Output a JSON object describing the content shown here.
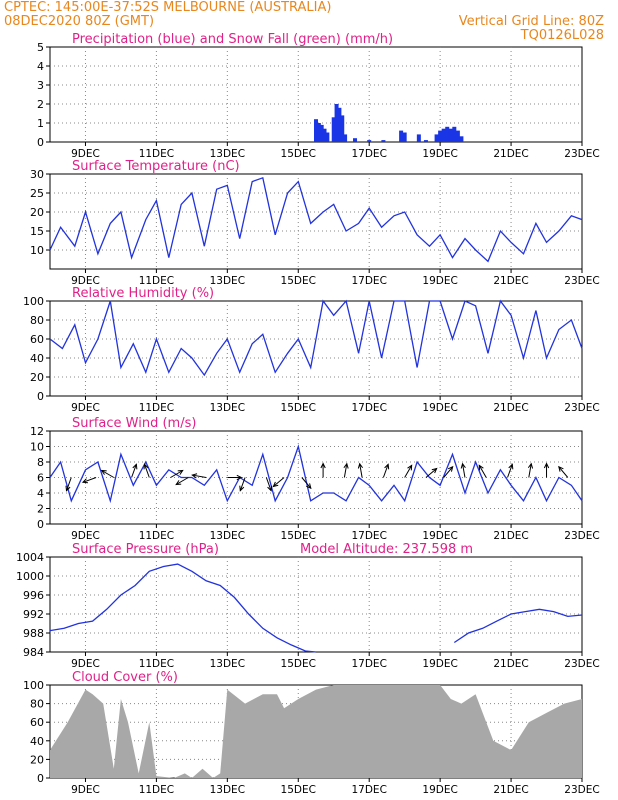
{
  "header": {
    "line1": "CPTEC:    145:00E-37:52S    MELBOURNE (AUSTRALIA)",
    "line2": "08DEC2020 80Z (GMT)",
    "grid_note": "Vertical Grid Line: 80Z",
    "code": "TQ0126L028"
  },
  "colors": {
    "header": "#e8871e",
    "title": "#e0218a",
    "line": "#2233dd",
    "precip": "#1a35e6",
    "snow": "#22aa22",
    "cloud": "#a8a8a8",
    "arrow": "#000000"
  },
  "x_axis": {
    "ticks": [
      "9DEC",
      "11DEC",
      "13DEC",
      "15DEC",
      "17DEC",
      "19DEC",
      "21DEC",
      "23DEC"
    ],
    "tick_days": [
      9,
      11,
      13,
      15,
      17,
      19,
      21,
      23
    ],
    "range": [
      8.0,
      23.0
    ]
  },
  "chart_data": [
    {
      "id": "precip",
      "type": "bar",
      "title": "Precipitation (blue) and Snow Fall (green) (mm/h)",
      "ylim": [
        0,
        5
      ],
      "yticks": [
        "0",
        "1",
        "2",
        "3",
        "4",
        "5"
      ],
      "series": [
        {
          "name": "Precipitation",
          "x": [
            15.5,
            15.58,
            15.66,
            15.74,
            15.82,
            16.0,
            16.08,
            16.16,
            16.24,
            16.32,
            16.6,
            17.0,
            17.4,
            17.9,
            18.0,
            18.4,
            18.6,
            18.9,
            19.0,
            19.1,
            19.2,
            19.3,
            19.4,
            19.5,
            19.6
          ],
          "values": [
            1.2,
            1.0,
            0.9,
            0.7,
            0.5,
            1.3,
            2.0,
            1.8,
            1.4,
            0.4,
            0.2,
            0.1,
            0.1,
            0.6,
            0.5,
            0.4,
            0.1,
            0.4,
            0.6,
            0.7,
            0.8,
            0.7,
            0.8,
            0.6,
            0.3
          ]
        },
        {
          "name": "Snow Fall",
          "x": [],
          "values": []
        }
      ]
    },
    {
      "id": "temp",
      "type": "line",
      "title": "Surface Temperature (nC)",
      "ylim": [
        5,
        30
      ],
      "yticks": [
        "10",
        "15",
        "20",
        "25",
        "30"
      ],
      "series": [
        {
          "name": "Temperature",
          "x": [
            8.0,
            8.3,
            8.7,
            9.0,
            9.35,
            9.7,
            10.0,
            10.3,
            10.7,
            11.0,
            11.35,
            11.7,
            12.0,
            12.35,
            12.7,
            13.0,
            13.35,
            13.7,
            14.0,
            14.35,
            14.7,
            15.0,
            15.35,
            15.7,
            16.0,
            16.35,
            16.7,
            17.0,
            17.35,
            17.7,
            18.0,
            18.35,
            18.7,
            19.0,
            19.35,
            19.7,
            20.0,
            20.35,
            20.7,
            21.0,
            21.35,
            21.7,
            22.0,
            22.35,
            22.7,
            23.0
          ],
          "values": [
            10,
            16,
            11,
            20,
            9,
            17,
            20,
            8,
            18,
            23,
            8,
            22,
            25,
            11,
            26,
            27,
            13,
            28,
            29,
            14,
            25,
            28,
            17,
            20,
            22,
            15,
            17,
            21,
            16,
            19,
            20,
            14,
            11,
            14,
            8,
            13,
            10,
            7,
            15,
            12,
            9,
            17,
            12,
            15,
            19,
            18
          ]
        }
      ]
    },
    {
      "id": "rh",
      "type": "line",
      "title": "Relative Humidity (%)",
      "ylim": [
        0,
        100
      ],
      "yticks": [
        "0",
        "20",
        "40",
        "60",
        "80",
        "100"
      ],
      "series": [
        {
          "name": "Relative Humidity",
          "x": [
            8.0,
            8.35,
            8.7,
            9.0,
            9.35,
            9.7,
            10.0,
            10.35,
            10.7,
            11.0,
            11.35,
            11.7,
            12.0,
            12.35,
            12.7,
            13.0,
            13.35,
            13.7,
            14.0,
            14.35,
            14.7,
            15.0,
            15.35,
            15.7,
            16.0,
            16.35,
            16.7,
            17.0,
            17.35,
            17.7,
            18.0,
            18.35,
            18.7,
            19.0,
            19.35,
            19.7,
            20.0,
            20.35,
            20.7,
            21.0,
            21.35,
            21.7,
            22.0,
            22.35,
            22.7,
            23.0
          ],
          "values": [
            60,
            50,
            75,
            35,
            60,
            100,
            30,
            55,
            25,
            60,
            25,
            50,
            40,
            22,
            45,
            60,
            25,
            55,
            65,
            25,
            45,
            60,
            30,
            100,
            85,
            100,
            45,
            100,
            40,
            100,
            100,
            30,
            100,
            100,
            60,
            100,
            95,
            45,
            100,
            85,
            40,
            90,
            40,
            70,
            80,
            50
          ]
        }
      ]
    },
    {
      "id": "wind",
      "type": "line",
      "title": "Surface Wind (m/s)",
      "ylim": [
        0,
        12
      ],
      "yticks": [
        "0",
        "2",
        "4",
        "6",
        "8",
        "10",
        "12"
      ],
      "series": [
        {
          "name": "Wind Speed",
          "x": [
            8.0,
            8.3,
            8.6,
            9.0,
            9.35,
            9.7,
            10.0,
            10.35,
            10.7,
            11.0,
            11.35,
            11.7,
            12.0,
            12.35,
            12.7,
            13.0,
            13.35,
            13.7,
            14.0,
            14.35,
            14.7,
            15.0,
            15.35,
            15.7,
            16.0,
            16.35,
            16.7,
            17.0,
            17.35,
            17.7,
            18.0,
            18.35,
            18.7,
            19.0,
            19.35,
            19.7,
            20.0,
            20.35,
            20.7,
            21.0,
            21.35,
            21.7,
            22.0,
            22.35,
            22.7,
            23.0
          ],
          "values": [
            6,
            8,
            3,
            7,
            8,
            3,
            9,
            5,
            8,
            5,
            7,
            6,
            6,
            5,
            7,
            3,
            6,
            5,
            9,
            3,
            6,
            10,
            3,
            4,
            4,
            3,
            6,
            5,
            3,
            5,
            3,
            8,
            6,
            5,
            9,
            4,
            8,
            4,
            7,
            5,
            3,
            6,
            3,
            6,
            5,
            3
          ]
        }
      ],
      "arrows_x": [
        8.6,
        9.3,
        9.8,
        10.3,
        10.8,
        11.4,
        11.9,
        12.4,
        13.0,
        13.5,
        14.1,
        14.6,
        15.1,
        15.7,
        16.3,
        16.8,
        17.4,
        18.0,
        18.6,
        19.1,
        19.7,
        20.3,
        20.9,
        21.5,
        22.0,
        22.6
      ],
      "arrows_dir": [
        200,
        250,
        300,
        20,
        340,
        60,
        240,
        280,
        90,
        200,
        160,
        230,
        140,
        0,
        10,
        350,
        20,
        30,
        50,
        40,
        350,
        330,
        20,
        10,
        0,
        320
      ]
    },
    {
      "id": "pres",
      "type": "line",
      "title": "Surface Pressure (hPa)",
      "annotation": "Model Altitude: 237.598 m",
      "ylim": [
        984,
        1004
      ],
      "yticks": [
        "984",
        "988",
        "992",
        "996",
        "1000",
        "1004"
      ],
      "series": [
        {
          "name": "Pressure",
          "x": [
            8.0,
            8.4,
            8.8,
            9.2,
            9.6,
            10.0,
            10.4,
            10.8,
            11.2,
            11.6,
            12.0,
            12.4,
            12.8,
            13.2,
            13.6,
            14.0,
            14.4,
            14.8,
            15.2,
            15.5,
            19.4,
            19.8,
            20.2,
            20.6,
            21.0,
            21.4,
            21.8,
            22.2,
            22.6,
            23.0
          ],
          "values": [
            988.5,
            989,
            990,
            990.5,
            993,
            996,
            998,
            1001,
            1002,
            1002.5,
            1001,
            999,
            998,
            995.5,
            992,
            989,
            987,
            985.5,
            984.2,
            984.0,
            986.0,
            988.0,
            989.0,
            990.5,
            992.0,
            992.5,
            993.0,
            992.5,
            991.5,
            991.8
          ]
        }
      ]
    },
    {
      "id": "cloud",
      "type": "area",
      "title": "Cloud Cover (%)",
      "ylim": [
        0,
        100
      ],
      "yticks": [
        "0",
        "20",
        "40",
        "60",
        "80",
        "100"
      ],
      "series": [
        {
          "name": "Cloud Cover",
          "x": [
            8.0,
            8.5,
            9.0,
            9.2,
            9.5,
            9.8,
            10.0,
            10.2,
            10.5,
            10.8,
            11.0,
            11.5,
            11.8,
            12.0,
            12.3,
            12.6,
            12.8,
            13.0,
            13.5,
            14.0,
            14.4,
            14.6,
            15.0,
            15.5,
            16.0,
            17.0,
            18.0,
            19.0,
            19.3,
            19.6,
            20.0,
            20.5,
            21.0,
            21.5,
            22.0,
            22.5,
            23.0
          ],
          "values": [
            30,
            60,
            95,
            90,
            80,
            10,
            85,
            60,
            5,
            60,
            2,
            0,
            5,
            0,
            10,
            0,
            5,
            95,
            80,
            90,
            90,
            75,
            85,
            95,
            100,
            100,
            100,
            100,
            85,
            80,
            90,
            40,
            30,
            60,
            70,
            80,
            85
          ]
        }
      ]
    }
  ]
}
